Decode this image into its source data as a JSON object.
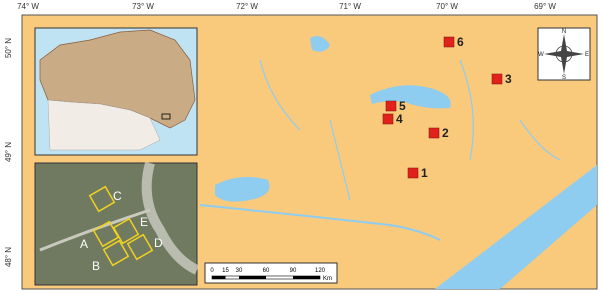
{
  "lon_labels": [
    "74° W",
    "73° W",
    "72° W",
    "71° W",
    "70° W",
    "69° W"
  ],
  "lat_labels": [
    "50° N",
    "49° N",
    "48° N"
  ],
  "sites": [
    "1",
    "2",
    "3",
    "4",
    "5",
    "6"
  ],
  "inset_labels": [
    "A",
    "B",
    "C",
    "D",
    "E"
  ],
  "scale_bar": {
    "ticks": [
      0,
      15,
      30,
      60,
      90,
      120
    ],
    "unit": "Km"
  },
  "compass": [
    "N",
    "E",
    "S",
    "W"
  ]
}
